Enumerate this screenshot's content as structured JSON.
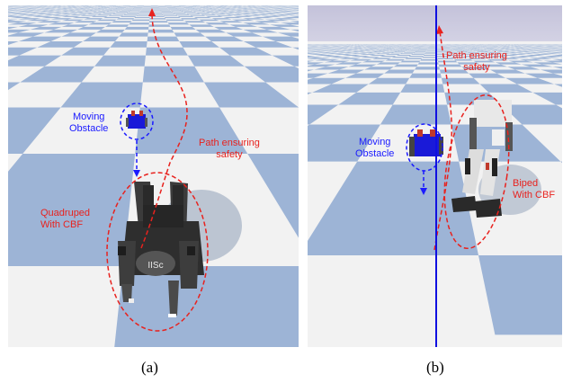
{
  "panel_a": {
    "obstacle_label_1": "Moving",
    "obstacle_label_2": "Obstacle",
    "path_label_1": "Path ensuring",
    "path_label_2": "safety",
    "robot_label_1": "Quadruped",
    "robot_label_2": "With CBF",
    "body_text": "IISc",
    "caption": "(a)"
  },
  "panel_b": {
    "obstacle_label_1": "Moving",
    "obstacle_label_2": "Obstacle",
    "path_label_1": "Path ensuring",
    "path_label_2": "safety",
    "robot_label_1": "Biped",
    "robot_label_2": "With CBF",
    "caption": "(b)"
  },
  "colors": {
    "tile_blue": "#9db4d6",
    "tile_white": "#f2f2f2",
    "sky_b": "#c8c5dd",
    "annotation_blue": "#1a1aff",
    "annotation_red": "#e8221e",
    "divider": "#1010e0"
  }
}
